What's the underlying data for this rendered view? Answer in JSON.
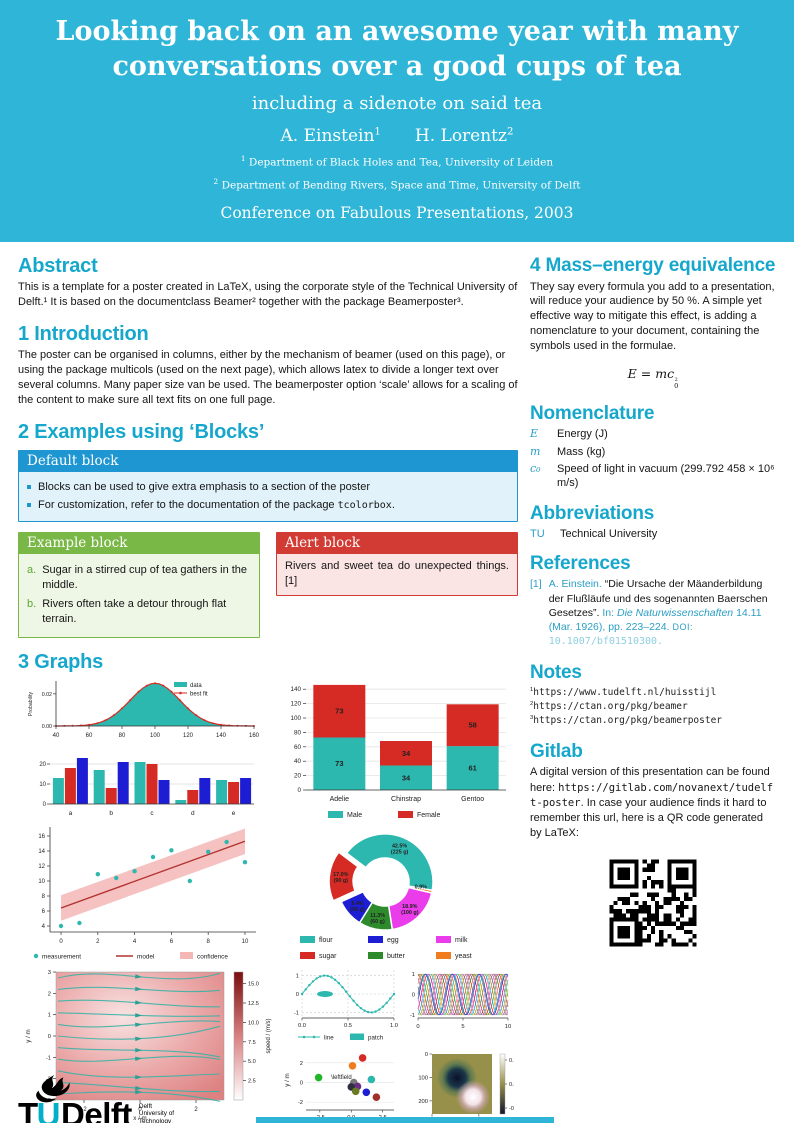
{
  "header": {
    "bg": "#2eb5d7",
    "title": "Looking back on an awesome year with many conversations over a good cups of tea",
    "subtitle": "including a sidenote on said tea",
    "authors": [
      {
        "name": "A. Einstein",
        "sup": "1"
      },
      {
        "name": "H. Lorentz",
        "sup": "2"
      }
    ],
    "affiliations": [
      {
        "sup": "1",
        "text": "Department of Black Holes and Tea, University of Leiden"
      },
      {
        "sup": "2",
        "text": "Department of Bending Rivers, Space and Time, University of Delft"
      }
    ],
    "conference": "Conference on Fabulous Presentations, 2003"
  },
  "left": {
    "abstract": {
      "heading": "Abstract",
      "text": "This is a template for a poster created in LaTeX, using the corporate style of the Technical University of Delft.¹ It is based on the documentclass Beamer² together with the package Beamerposter³."
    },
    "introduction": {
      "heading": "1 Introduction",
      "text": "The poster can be organised in columns, either by the mechanism of beamer (used on this page), or using the package multicols (used on the next page), which allows latex to divide a longer text over several columns. Many paper size van be used. The beamerposter option ‘scale’ allows for a scaling of the content to make sure all text fits on one full page."
    },
    "blocks": {
      "heading": "2 Examples using ‘Blocks’",
      "default_block": {
        "title": "Default block",
        "item1": "Blocks can be used to give extra emphasis to a section of the poster",
        "item2_pre": "For customization, refer to the documentation of the package ",
        "item2_code": "tcolorbox",
        "item2_post": "."
      },
      "example_block": {
        "title": "Example block",
        "items": [
          {
            "label": "a.",
            "text": "Sugar in a stirred cup of tea gathers in the middle."
          },
          {
            "label": "b.",
            "text": "Rivers often take a detour through flat terrain."
          }
        ]
      },
      "alert_block": {
        "title": "Alert block",
        "text": "Rivers and sweet tea do unexpected things.[1]"
      }
    },
    "graphs": {
      "heading": "3 Graphs"
    }
  },
  "right": {
    "mass_energy": {
      "heading": "4 Mass–energy equivalence",
      "text": "They say every formula you add to a presentation, will reduce your audience by 50 %. A simple yet effective way to mitigate this effect, is adding a nomenclature to your document, containing the symbols used in the formulae."
    },
    "formula": {
      "lhs": "E",
      "eq": " = ",
      "rhs": "mc",
      "sup": "2",
      "sub": "0"
    },
    "nomenclature": {
      "heading": "Nomenclature",
      "entries": [
        {
          "symbol": "E",
          "definition": "Energy (J)"
        },
        {
          "symbol": "m",
          "definition": "Mass (kg)"
        },
        {
          "symbol": "c₀",
          "definition": "Speed of light in vacuum (299.792 458 × 10⁶ m/s)"
        }
      ]
    },
    "abbreviations": {
      "heading": "Abbreviations",
      "entries": [
        {
          "abbr": "TU",
          "definition": "Technical University"
        }
      ]
    },
    "references": {
      "heading": "References",
      "items": [
        {
          "num": "[1]",
          "author": "A. Einstein.",
          "title": "“Die Ursache der Mäanderbildung der Flußläufe und des sogenannten Baerschen Gesetzes”.",
          "in_label": "In:",
          "journal": "Die Naturwissenschaften",
          "detail": "14.11 (Mar. 1926), pp. 223–224.",
          "doi_label": "DOI:",
          "doi": "10.1007/bf01510300."
        }
      ]
    },
    "notes": {
      "heading": "Notes",
      "items": [
        {
          "sup": "1",
          "url": "https://www.tudelft.nl/huisstijl"
        },
        {
          "sup": "2",
          "url": "https://ctan.org/pkg/beamer"
        },
        {
          "sup": "3",
          "url": "https://ctan.org/pkg/beamerposter"
        }
      ]
    },
    "gitlab": {
      "heading": "Gitlab",
      "text_pre": "A digital version of this presentation can be found here: ",
      "url": "https://gitlab.com/novanext/tudelft-poster",
      "text_post": ". In case your audience finds it hard to remember this url, here is a QR code generated by LaTeX:"
    }
  },
  "logo": {
    "t": "T",
    "u": "U",
    "delft": "Delft",
    "tagline": [
      "Delft",
      "University of",
      "Technology"
    ]
  },
  "chart_data": [
    {
      "name": "probability_fit",
      "type": "area",
      "ylabel": "Probability",
      "xlim": [
        40,
        160
      ],
      "ylim": [
        0,
        0.028
      ],
      "xticks": [
        40,
        60,
        80,
        100,
        120,
        140,
        160
      ],
      "yticks": [
        "0.00",
        "0.02"
      ],
      "gaussian": {
        "mean": 100,
        "sigma": 15,
        "peak": 0.0266
      },
      "legend": [
        {
          "label": "data",
          "color": "#2db8af"
        },
        {
          "label": "best fit",
          "color": "#d62b24"
        }
      ],
      "colors": {
        "data": "#2db8af",
        "fit": "#d62b24"
      }
    },
    {
      "name": "grouped_bar",
      "type": "bar",
      "categories": [
        "a",
        "b",
        "c",
        "d",
        "e"
      ],
      "series": [
        {
          "name": "series1",
          "color": "#2db8af",
          "values": [
            13,
            17,
            21,
            2,
            12
          ]
        },
        {
          "name": "series2",
          "color": "#d62b24",
          "values": [
            18,
            8,
            20,
            7,
            11
          ]
        },
        {
          "name": "series3",
          "color": "#1d1dd4",
          "values": [
            23,
            21,
            12,
            13,
            13
          ]
        }
      ],
      "yticks": [
        0,
        10,
        20
      ],
      "ylim": [
        0,
        25
      ]
    },
    {
      "name": "penguins_stacked",
      "type": "bar",
      "categories": [
        "Adelie",
        "Chinstrap",
        "Gentoo"
      ],
      "series": [
        {
          "name": "Male",
          "color": "#2db8af",
          "values": [
            73,
            34,
            61
          ]
        },
        {
          "name": "Female",
          "color": "#d62b24",
          "values": [
            73,
            34,
            58
          ]
        }
      ],
      "yticks": [
        0,
        20,
        40,
        60,
        80,
        100,
        120,
        140
      ],
      "ylim": [
        0,
        150
      ],
      "legend": [
        "Male",
        "Female"
      ]
    },
    {
      "name": "regression",
      "type": "scatter",
      "points": [
        [
          0,
          4.0
        ],
        [
          1,
          4.4
        ],
        [
          2,
          10.9
        ],
        [
          3,
          10.4
        ],
        [
          4,
          11.3
        ],
        [
          5,
          13.2
        ],
        [
          6,
          14.1
        ],
        [
          7,
          10.0
        ],
        [
          8,
          13.9
        ],
        [
          9,
          15.2
        ],
        [
          10,
          12.5
        ]
      ],
      "model": {
        "x": [
          0,
          10
        ],
        "y": [
          6.4,
          15.3
        ]
      },
      "band": {
        "x": [
          0,
          10
        ],
        "upper": [
          8.1,
          17.0
        ],
        "lower": [
          4.7,
          13.6
        ]
      },
      "xticks": [
        0,
        2,
        4,
        6,
        8,
        10
      ],
      "yticks": [
        4,
        6,
        8,
        10,
        12,
        14,
        16
      ],
      "legend": [
        "measurement",
        "model",
        "confidence"
      ],
      "colors": {
        "point": "#2db8af",
        "line": "#b23230",
        "band": "#f5b6b6"
      }
    },
    {
      "name": "dough_donut",
      "type": "pie",
      "start_angle": -53,
      "slices": [
        {
          "label": "flour",
          "pct": 42.5,
          "amount": "225 g",
          "color": "#2db8af"
        },
        {
          "label": "yeast",
          "pct": 0.9,
          "amount": "5 g",
          "color": "#ef7d1f"
        },
        {
          "label": "milk",
          "pct": 18.9,
          "amount": "100 g",
          "color": "#ea3cea"
        },
        {
          "label": "butter",
          "pct": 11.3,
          "amount": "60 g",
          "color": "#2e8b2c"
        },
        {
          "label": "egg",
          "pct": 9.4,
          "amount": "50 g",
          "color": "#1d1dd4"
        },
        {
          "label": "sugar",
          "pct": 17.0,
          "amount": "90 g",
          "color": "#d62b24",
          "offset": true
        }
      ],
      "legend_order": [
        "flour",
        "sugar",
        "egg",
        "butter",
        "milk",
        "yeast"
      ]
    },
    {
      "name": "stream_field",
      "type": "heatmap",
      "xlabel": "x / m",
      "ylabel": "y / m",
      "xlim": [
        -3,
        3
      ],
      "ylim": [
        -3,
        3
      ],
      "xticks": [
        -2,
        0,
        2
      ],
      "yticks": [
        -3,
        -2,
        -1,
        0,
        1,
        2,
        3
      ],
      "colorbar": {
        "label": "speed / (m/s)",
        "ticks": [
          2.5,
          5.0,
          7.5,
          10.0,
          12.5,
          15.0
        ],
        "max": 16.5
      },
      "line_color": "#38b2a6"
    },
    {
      "name": "sine_patch",
      "type": "line",
      "func": "sin(2*pi*x)",
      "xlim": [
        0,
        1
      ],
      "xticks": [
        "0.0",
        "0.5",
        "1.0"
      ],
      "yticks": [
        -1,
        0,
        1
      ],
      "patch": {
        "x": 0.25,
        "y": 0
      },
      "legend": [
        "line",
        "patch"
      ],
      "color": "#2db8af"
    },
    {
      "name": "phase_lines",
      "type": "line",
      "xlim": [
        0,
        10
      ],
      "xticks": [
        0,
        5,
        10
      ],
      "yticks": [
        -1,
        0,
        1
      ],
      "n_lines": 12,
      "colors": [
        "#1f77b4",
        "#ff7f0e",
        "#2ca02c",
        "#d62728",
        "#9467bd",
        "#8c564b",
        "#e377c2",
        "#7f7f7f",
        "#bcbd22",
        "#17becf",
        "#e71f8f",
        "#2244cc"
      ]
    },
    {
      "name": "left_field_scatter",
      "type": "scatter",
      "xlabel": "x / m",
      "ylabel": "y / m",
      "annotation": "\\leftfield",
      "xticks": [
        "-2.5",
        "0.0",
        "2.5"
      ],
      "yticks": [
        -2,
        0,
        2
      ],
      "points": [
        {
          "x": 0.9,
          "y": 2.5,
          "color": "#d62b24"
        },
        {
          "x": 0.1,
          "y": 1.7,
          "color": "#ef7d1f"
        },
        {
          "x": -2.6,
          "y": 0.5,
          "color": "#22b52a"
        },
        {
          "x": 1.6,
          "y": 0.3,
          "color": "#2db8af"
        },
        {
          "x": 0.2,
          "y": 0.0,
          "color": "#7a7a7a"
        },
        {
          "x": 0.5,
          "y": -0.4,
          "color": "#6a2d84"
        },
        {
          "x": 0.0,
          "y": -0.45,
          "color": "#2f2f3f"
        },
        {
          "x": 0.35,
          "y": -0.9,
          "color": "#6a7a22"
        },
        {
          "x": 1.2,
          "y": -1.0,
          "color": "#1d1dd4"
        },
        {
          "x": 2.0,
          "y": -1.5,
          "color": "#a03028"
        }
      ]
    },
    {
      "name": "gaussian_image",
      "type": "heatmap",
      "xticks": [
        0,
        200
      ],
      "yticks": [
        0,
        100,
        200
      ],
      "colorbar": {
        "ticks": [
          0.1,
          0.0,
          -0.1
        ]
      },
      "bg": "#97904a"
    }
  ]
}
